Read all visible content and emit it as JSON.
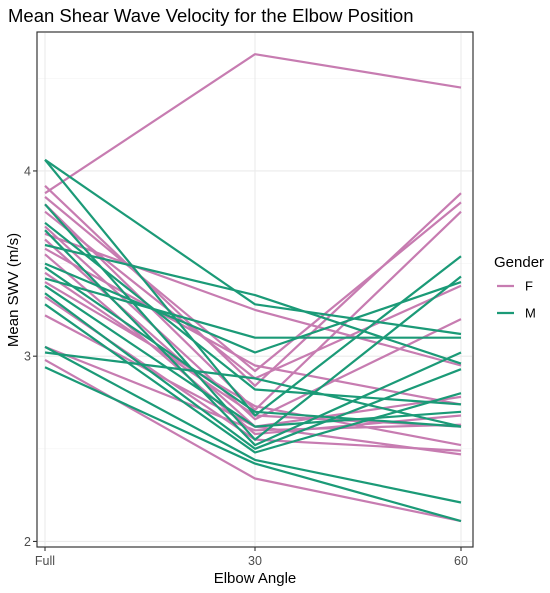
{
  "chart_data": {
    "type": "line",
    "title": "Mean Shear Wave Velocity for the Elbow Position",
    "xlabel": "Elbow Angle",
    "ylabel": "Mean SWV (m/s)",
    "categories": [
      "Full",
      "30",
      "60"
    ],
    "y_ticks": [
      "2",
      "3",
      "4"
    ],
    "ylim": [
      1.97,
      4.75
    ],
    "grid": true,
    "legend": {
      "title": "Gender",
      "position": "right",
      "entries": [
        {
          "label": "F",
          "color": "#c77cb1"
        },
        {
          "label": "M",
          "color": "#1b9a77"
        }
      ]
    },
    "series": [
      {
        "group": "F",
        "values": [
          3.88,
          4.63,
          4.45
        ]
      },
      {
        "group": "F",
        "values": [
          3.92,
          2.84,
          3.88
        ]
      },
      {
        "group": "F",
        "values": [
          3.86,
          2.92,
          3.83
        ]
      },
      {
        "group": "F",
        "values": [
          3.82,
          2.71,
          3.78
        ]
      },
      {
        "group": "F",
        "values": [
          3.78,
          2.88,
          3.38
        ]
      },
      {
        "group": "F",
        "values": [
          3.7,
          2.66,
          3.2
        ]
      },
      {
        "group": "F",
        "values": [
          3.66,
          3.25,
          2.95
        ]
      },
      {
        "group": "F",
        "values": [
          3.63,
          2.62,
          2.78
        ]
      },
      {
        "group": "F",
        "values": [
          3.58,
          2.95,
          2.74
        ]
      },
      {
        "group": "F",
        "values": [
          3.55,
          2.58,
          2.68
        ]
      },
      {
        "group": "F",
        "values": [
          3.45,
          2.68,
          2.62
        ]
      },
      {
        "group": "F",
        "values": [
          3.4,
          2.73,
          2.52
        ]
      },
      {
        "group": "F",
        "values": [
          3.32,
          2.55,
          2.49
        ]
      },
      {
        "group": "F",
        "values": [
          3.22,
          2.62,
          2.47
        ]
      },
      {
        "group": "F",
        "values": [
          3.05,
          2.6,
          2.63
        ]
      },
      {
        "group": "F",
        "values": [
          2.98,
          2.34,
          2.11
        ]
      },
      {
        "group": "M",
        "values": [
          4.06,
          3.28,
          3.12
        ]
      },
      {
        "group": "M",
        "values": [
          4.06,
          2.68,
          3.54
        ]
      },
      {
        "group": "M",
        "values": [
          3.82,
          2.55,
          3.43
        ]
      },
      {
        "group": "M",
        "values": [
          3.72,
          2.82,
          2.74
        ]
      },
      {
        "group": "M",
        "values": [
          3.68,
          2.52,
          3.02
        ]
      },
      {
        "group": "M",
        "values": [
          3.6,
          3.33,
          2.96
        ]
      },
      {
        "group": "M",
        "values": [
          3.5,
          3.02,
          3.4
        ]
      },
      {
        "group": "M",
        "values": [
          3.48,
          2.7,
          2.62
        ]
      },
      {
        "group": "M",
        "values": [
          3.42,
          3.1,
          3.1
        ]
      },
      {
        "group": "M",
        "values": [
          3.38,
          2.62,
          2.7
        ]
      },
      {
        "group": "M",
        "values": [
          3.34,
          2.5,
          2.93
        ]
      },
      {
        "group": "M",
        "values": [
          3.28,
          2.48,
          2.8
        ]
      },
      {
        "group": "M",
        "values": [
          3.05,
          2.44,
          2.21
        ]
      },
      {
        "group": "M",
        "values": [
          3.02,
          2.88,
          2.62
        ]
      },
      {
        "group": "M",
        "values": [
          2.94,
          2.42,
          2.11
        ]
      }
    ]
  }
}
